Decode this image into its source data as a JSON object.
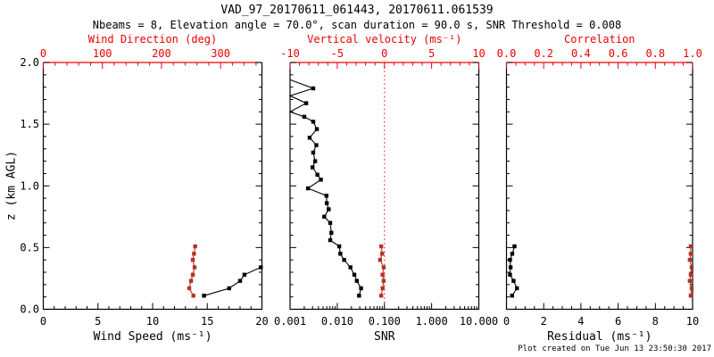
{
  "colors": {
    "black": "#000000",
    "bright_red": "#ee0000",
    "brick_red": "#b23326",
    "background": "#ffffff"
  },
  "chart_data": {
    "type": "line",
    "title": "VAD_97_20170611_061443, 20170611.061539",
    "subtitle": "Nbeams = 8, Elevation angle = 70.0°, scan duration = 90.0 s, SNR Threshold = 0.008",
    "footer": "Plot created on Tue Jun 13 23:50:30 2017",
    "y_axis": {
      "label": "z (km AGL)",
      "range": [
        0,
        2
      ],
      "tick_values": [
        0,
        0.5,
        1,
        1.5,
        2
      ],
      "tick_labels": [
        "0.0",
        "0.5",
        "1.0",
        "1.5",
        "2.0"
      ],
      "minor_step": 0.1
    },
    "panels": [
      {
        "name": "wind",
        "top_axis": {
          "label": "Wind Direction (deg)",
          "color": "bright_red",
          "range": [
            0,
            370
          ],
          "tick_values": [
            0,
            100,
            200,
            300
          ],
          "tick_labels": [
            "0",
            "100",
            "200",
            "300"
          ],
          "minor_step": 20
        },
        "bottom_axis": {
          "label": "Wind Speed (ms⁻¹)",
          "range": [
            0,
            20
          ],
          "tick_values": [
            0,
            5,
            10,
            15,
            20
          ],
          "tick_labels": [
            "0",
            "5",
            "10",
            "15",
            "20"
          ],
          "minor_step": 1
        },
        "series": [
          {
            "name": "wind-speed",
            "axis": "bottom",
            "color": "black",
            "points": [
              [
                14.7,
                0.11
              ],
              [
                17.0,
                0.17
              ],
              [
                18.0,
                0.23
              ],
              [
                18.4,
                0.28
              ],
              [
                19.9,
                0.34
              ]
            ]
          },
          {
            "name": "wind-direction",
            "axis": "top",
            "color": "brick_red",
            "points": [
              [
                254,
                0.11
              ],
              [
                247,
                0.17
              ],
              [
                250,
                0.23
              ],
              [
                253,
                0.28
              ],
              [
                256,
                0.34
              ],
              [
                253,
                0.4
              ],
              [
                255,
                0.45
              ],
              [
                257,
                0.51
              ]
            ]
          }
        ]
      },
      {
        "name": "snr",
        "top_axis": {
          "label": "Vertical velocity (ms⁻¹)",
          "color": "bright_red",
          "range": [
            -10,
            10
          ],
          "tick_values": [
            -10,
            -5,
            0,
            5,
            10
          ],
          "tick_labels": [
            "-10",
            "-5",
            "0",
            "5",
            "10"
          ],
          "minor_step": 1
        },
        "bottom_axis": {
          "label": "SNR",
          "scale": "log",
          "range": [
            0.001,
            10
          ],
          "tick_values": [
            0.001,
            0.01,
            0.1,
            1,
            10
          ],
          "tick_labels": [
            "0.001",
            "0.010",
            "0.100",
            "1.000",
            "10.000"
          ]
        },
        "reference_line": {
          "axis": "top",
          "value": 0,
          "style": "dotted",
          "color": "bright_red"
        },
        "series": [
          {
            "name": "snr",
            "axis": "bottom",
            "color": "black",
            "clip_min": 0.001,
            "points": [
              [
                0.029,
                0.11
              ],
              [
                0.032,
                0.17
              ],
              [
                0.026,
                0.23
              ],
              [
                0.023,
                0.28
              ],
              [
                0.019,
                0.34
              ],
              [
                0.014,
                0.4
              ],
              [
                0.0116,
                0.45
              ],
              [
                0.011,
                0.51
              ],
              [
                0.0071,
                0.56
              ],
              [
                0.0075,
                0.62
              ],
              [
                0.0071,
                0.7
              ],
              [
                0.0053,
                0.75
              ],
              [
                0.0066,
                0.81
              ],
              [
                0.006,
                0.86
              ],
              [
                0.0059,
                0.92
              ],
              [
                0.0024,
                0.98
              ],
              [
                0.0045,
                1.05
              ],
              [
                0.0038,
                1.09
              ],
              [
                0.003,
                1.15
              ],
              [
                0.0034,
                1.2
              ],
              [
                0.0031,
                1.27
              ],
              [
                0.0036,
                1.33
              ],
              [
                0.0026,
                1.39
              ],
              [
                0.0037,
                1.46
              ],
              [
                0.0031,
                1.52
              ],
              [
                0.002,
                1.56
              ],
              [
                0.001,
                1.6
              ],
              [
                0.0022,
                1.67
              ],
              [
                0.001,
                1.73
              ],
              [
                0.0031,
                1.79
              ],
              [
                0.001,
                1.86
              ]
            ]
          },
          {
            "name": "vertical-velocity",
            "axis": "top",
            "color": "brick_red",
            "points": [
              [
                -0.34,
                0.11
              ],
              [
                -0.2,
                0.17
              ],
              [
                -0.08,
                0.23
              ],
              [
                -0.2,
                0.28
              ],
              [
                -0.08,
                0.34
              ],
              [
                -0.46,
                0.4
              ],
              [
                -0.24,
                0.45
              ],
              [
                -0.34,
                0.51
              ]
            ]
          }
        ]
      },
      {
        "name": "residual",
        "top_axis": {
          "label": "Correlation",
          "color": "bright_red",
          "range": [
            0,
            1
          ],
          "tick_values": [
            0,
            0.2,
            0.4,
            0.6,
            0.8,
            1
          ],
          "tick_labels": [
            "0.0",
            "0.2",
            "0.4",
            "0.6",
            "0.8",
            "1.0"
          ],
          "minor_step": 0.05
        },
        "bottom_axis": {
          "label": "Residual (ms⁻¹)",
          "range": [
            0,
            10
          ],
          "tick_values": [
            0,
            2,
            4,
            6,
            8,
            10
          ],
          "tick_labels": [
            "0",
            "2",
            "4",
            "6",
            "8",
            "10"
          ],
          "minor_step": 0.5
        },
        "series": [
          {
            "name": "residual",
            "axis": "bottom",
            "color": "black",
            "points": [
              [
                0.3,
                0.11
              ],
              [
                0.56,
                0.17
              ],
              [
                0.38,
                0.23
              ],
              [
                0.19,
                0.28
              ],
              [
                0.22,
                0.34
              ],
              [
                0.19,
                0.4
              ],
              [
                0.31,
                0.45
              ],
              [
                0.43,
                0.51
              ]
            ]
          },
          {
            "name": "correlation",
            "axis": "top",
            "color": "brick_red",
            "points": [
              [
                0.99,
                0.11
              ],
              [
                0.995,
                0.17
              ],
              [
                0.985,
                0.23
              ],
              [
                0.99,
                0.28
              ],
              [
                0.995,
                0.34
              ],
              [
                0.985,
                0.4
              ],
              [
                0.99,
                0.45
              ],
              [
                0.99,
                0.51
              ]
            ]
          }
        ]
      }
    ]
  }
}
